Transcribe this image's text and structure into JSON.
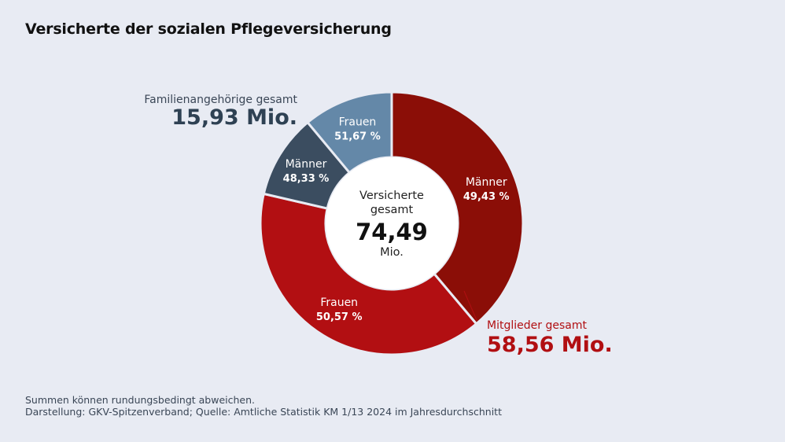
{
  "chart_data": {
    "type": "donut",
    "title": "Versicherte der sozialen Pflegeversicherung",
    "center": {
      "label_line1": "Versicherte",
      "label_line2": "gesamt",
      "value": "74,49",
      "unit": "Mio."
    },
    "groups": [
      {
        "name": "Mitglieder gesamt",
        "total_label": "58,56 Mio.",
        "total": 58.56,
        "segments": [
          {
            "name": "Männer",
            "percent_label": "49,43 %",
            "percent": 49.43,
            "color": "#8b0e07"
          },
          {
            "name": "Frauen",
            "percent_label": "50,57 %",
            "percent": 50.57,
            "color": "#b20f12"
          }
        ]
      },
      {
        "name": "Familienangehörige gesamt",
        "total_label": "15,93 Mio.",
        "total": 15.93,
        "segments": [
          {
            "name": "Männer",
            "percent_label": "48,33 %",
            "percent": 48.33,
            "color": "#3b4d60"
          },
          {
            "name": "Frauen",
            "percent_label": "51,67 %",
            "percent": 51.67,
            "color": "#6488a8"
          }
        ]
      }
    ]
  },
  "footer": {
    "note": "Summen können rundungsbedingt abweichen.",
    "source": "Darstellung: GKV-Spitzenverband; Quelle: Amtliche Statistik KM 1/13 2024 im Jahresdurchschnitt"
  }
}
